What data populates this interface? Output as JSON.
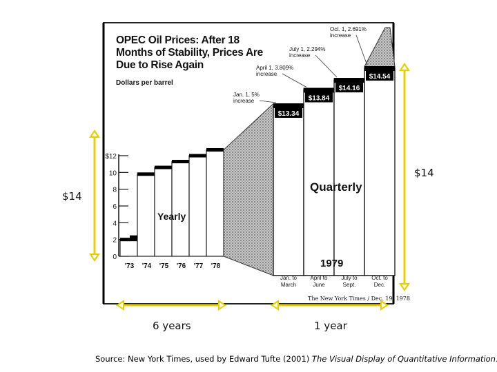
{
  "chart_data": {
    "type": "bar",
    "title": "OPEC Oil Prices: After 18 Months of Stability, Prices Are Due to Rise Again",
    "ylabel": "Dollars per barrel",
    "yticks": [
      "0",
      "2",
      "4",
      "6",
      "8",
      "10",
      "$12"
    ],
    "ylim": [
      0,
      12
    ],
    "yearly": {
      "label": "Yearly",
      "categories": [
        "'73",
        "'74",
        "'75",
        "'76",
        "'77",
        "'78"
      ],
      "values": [
        2.0,
        9.8,
        10.6,
        11.3,
        12.0,
        12.7
      ]
    },
    "quarterly": {
      "label": "Quarterly",
      "year_label": "1979",
      "categories": [
        {
          "line1": "Jan. to",
          "line2": "March"
        },
        {
          "line1": "April to",
          "line2": "June"
        },
        {
          "line1": "July to",
          "line2": "Sept."
        },
        {
          "line1": "Oct. to",
          "line2": "Dec."
        }
      ],
      "values": [
        13.34,
        13.84,
        14.16,
        14.54
      ],
      "value_labels": [
        "$13.34",
        "$13.84",
        "$14.16",
        "$14.54"
      ],
      "annotations": [
        {
          "line1": "Jan. 1, 5%",
          "line2": "increase"
        },
        {
          "line1": "April 1, 3.809%",
          "line2": "increase"
        },
        {
          "line1": "July 1, 2.294%",
          "line2": "increase"
        },
        {
          "line1": "Oct. 1, 2.691%",
          "line2": "increase"
        }
      ]
    },
    "credit": "The New York Times / Dec. 19, 1978",
    "grid": false
  },
  "overlay": {
    "left_height_label": "$14",
    "right_height_label": "$14",
    "yearly_span_label": "6 years",
    "quarterly_span_label": "1 year",
    "arrow_color": "#e8d000"
  },
  "source": {
    "prefix": "Source: New York Times, used by Edward Tufte (2001) ",
    "book": "The Visual Display of Quantitative Information",
    "suffix": "."
  }
}
